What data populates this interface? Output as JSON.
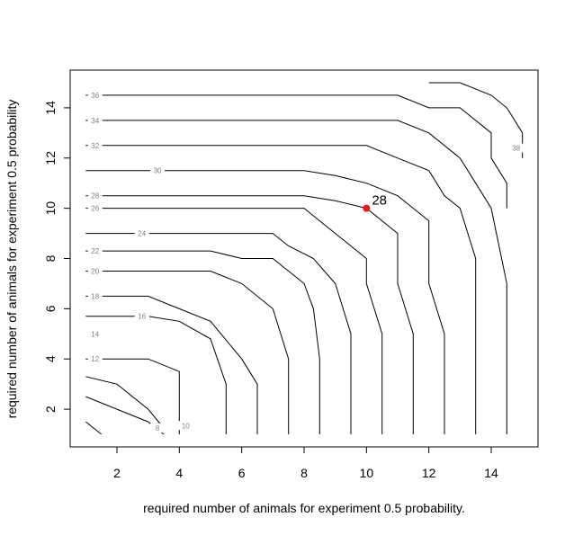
{
  "chart_data": {
    "type": "contour",
    "title": "",
    "xlabel": "required number of animals for experiment 0.5 probability.",
    "ylabel": "required number of animals for experiment 0.5 probability",
    "xlim": [
      0.5,
      15.5
    ],
    "ylim": [
      0.5,
      15.5
    ],
    "x_ticks": [
      2,
      4,
      6,
      8,
      10,
      12,
      14
    ],
    "y_ticks": [
      2,
      4,
      6,
      8,
      10,
      12,
      14
    ],
    "grid": false,
    "legend": "none",
    "contours": [
      {
        "level": 8,
        "label": "8",
        "label_at": [
          3.3,
          1.25
        ],
        "points": [
          [
            1,
            1.5
          ],
          [
            1.5,
            1
          ]
        ]
      },
      {
        "level": 10,
        "label": "10",
        "label_at": [
          4.2,
          1.35
        ],
        "points": [
          [
            1,
            2.5
          ],
          [
            2,
            2
          ],
          [
            3,
            1.5
          ],
          [
            3.5,
            1
          ]
        ]
      },
      {
        "level": 12,
        "label": "12",
        "label_at": [
          1.3,
          4
        ],
        "points": [
          [
            1,
            3.3
          ],
          [
            2,
            3
          ],
          [
            3,
            2
          ],
          [
            3.2,
            1.7
          ],
          [
            3.5,
            1.25
          ]
        ]
      },
      {
        "level": 14,
        "label": "14",
        "label_at": [
          1.3,
          5
        ],
        "points": [
          [
            1,
            4
          ],
          [
            2,
            4
          ],
          [
            3,
            4
          ],
          [
            4,
            3.5
          ],
          [
            4,
            1
          ]
        ]
      },
      {
        "level": 16,
        "label": "16",
        "label_at": [
          2.8,
          5.7
        ],
        "points": [
          [
            1,
            5.7
          ],
          [
            2,
            5.7
          ],
          [
            3,
            5.7
          ],
          [
            4,
            5.5
          ],
          [
            5,
            4.8
          ],
          [
            5.5,
            3
          ],
          [
            5.5,
            1
          ]
        ]
      },
      {
        "level": 18,
        "label": "18",
        "label_at": [
          1.3,
          6.5
        ],
        "points": [
          [
            1,
            6.5
          ],
          [
            2,
            6.5
          ],
          [
            3,
            6.5
          ],
          [
            4,
            6
          ],
          [
            5,
            5.5
          ],
          [
            6,
            4
          ],
          [
            6.5,
            3
          ],
          [
            6.5,
            1
          ]
        ]
      },
      {
        "level": 20,
        "label": "20",
        "label_at": [
          1.3,
          7.5
        ],
        "points": [
          [
            1,
            7.5
          ],
          [
            2,
            7.5
          ],
          [
            3,
            7.5
          ],
          [
            5,
            7.5
          ],
          [
            6,
            7
          ],
          [
            7,
            6
          ],
          [
            7.5,
            4
          ],
          [
            7.5,
            1
          ]
        ]
      },
      {
        "level": 22,
        "label": "22",
        "label_at": [
          1.3,
          8.3
        ],
        "points": [
          [
            1,
            8.3
          ],
          [
            2,
            8.3
          ],
          [
            3,
            8.3
          ],
          [
            5,
            8.3
          ],
          [
            6,
            8
          ],
          [
            7,
            8
          ],
          [
            8,
            7
          ],
          [
            8.3,
            6
          ],
          [
            8.5,
            4
          ],
          [
            8.5,
            1
          ]
        ]
      },
      {
        "level": 24,
        "label": "24",
        "label_at": [
          2.8,
          9
        ],
        "points": [
          [
            1,
            9
          ],
          [
            2,
            9
          ],
          [
            3,
            9
          ],
          [
            5,
            9
          ],
          [
            6,
            9
          ],
          [
            7,
            9
          ],
          [
            7.5,
            8.5
          ],
          [
            8.3,
            8
          ],
          [
            9,
            7
          ],
          [
            9.5,
            5
          ],
          [
            9.5,
            1
          ]
        ]
      },
      {
        "level": 26,
        "label": "26",
        "label_at": [
          1.3,
          10
        ],
        "points": [
          [
            1,
            10
          ],
          [
            2,
            10
          ],
          [
            3,
            10
          ],
          [
            5,
            10
          ],
          [
            7,
            10
          ],
          [
            8,
            10
          ],
          [
            8.5,
            9.5
          ],
          [
            9,
            9
          ],
          [
            10,
            8
          ],
          [
            10,
            7
          ],
          [
            10.5,
            5
          ],
          [
            10.5,
            1
          ]
        ]
      },
      {
        "level": 28,
        "label": "28",
        "label_at": [
          1.3,
          10.5
        ],
        "points": [
          [
            1,
            10.5
          ],
          [
            2,
            10.5
          ],
          [
            3,
            10.5
          ],
          [
            5,
            10.5
          ],
          [
            7,
            10.5
          ],
          [
            8,
            10.5
          ],
          [
            9,
            10.3
          ],
          [
            10,
            10
          ],
          [
            11,
            9
          ],
          [
            11,
            7
          ],
          [
            11.5,
            5
          ],
          [
            11.5,
            1
          ]
        ]
      },
      {
        "level": 30,
        "label": "30",
        "label_at": [
          3.3,
          11.5
        ],
        "points": [
          [
            1,
            11.5
          ],
          [
            2,
            11.5
          ],
          [
            3,
            11.5
          ],
          [
            5,
            11.5
          ],
          [
            7,
            11.5
          ],
          [
            8,
            11.5
          ],
          [
            9,
            11.3
          ],
          [
            10,
            11
          ],
          [
            11,
            10.5
          ],
          [
            11.5,
            10
          ],
          [
            12,
            9.5
          ],
          [
            12,
            7
          ],
          [
            12.5,
            5
          ],
          [
            12.5,
            1
          ]
        ]
      },
      {
        "level": 32,
        "label": "32",
        "label_at": [
          1.3,
          12.5
        ],
        "points": [
          [
            1,
            12.5
          ],
          [
            2,
            12.5
          ],
          [
            3,
            12.5
          ],
          [
            5,
            12.5
          ],
          [
            7,
            12.5
          ],
          [
            9,
            12.5
          ],
          [
            10,
            12.5
          ],
          [
            11,
            12
          ],
          [
            12,
            11.5
          ],
          [
            12.5,
            10.5
          ],
          [
            13,
            10
          ],
          [
            13.5,
            8
          ],
          [
            13.5,
            1
          ]
        ]
      },
      {
        "level": 34,
        "label": "34",
        "label_at": [
          1.3,
          13.5
        ],
        "points": [
          [
            1,
            13.5
          ],
          [
            2,
            13.5
          ],
          [
            3,
            13.5
          ],
          [
            5,
            13.5
          ],
          [
            7,
            13.5
          ],
          [
            9,
            13.5
          ],
          [
            11,
            13.5
          ],
          [
            12,
            13
          ],
          [
            13,
            12
          ],
          [
            13.5,
            11
          ],
          [
            14,
            10
          ],
          [
            14.5,
            7
          ],
          [
            14.5,
            1
          ]
        ]
      },
      {
        "level": 36,
        "label": "36",
        "label_at": [
          1.3,
          14.5
        ],
        "points": [
          [
            1,
            14.5
          ],
          [
            2,
            14.5
          ],
          [
            3,
            14.5
          ],
          [
            5,
            14.5
          ],
          [
            7,
            14.5
          ],
          [
            9,
            14.5
          ],
          [
            11,
            14.5
          ],
          [
            12,
            14
          ],
          [
            13,
            14
          ],
          [
            14,
            13
          ],
          [
            14,
            12
          ],
          [
            14.5,
            11
          ],
          [
            14.5,
            10
          ]
        ]
      },
      {
        "level": 38,
        "label": "38",
        "label_at": [
          14.8,
          12.4
        ],
        "points": [
          [
            12,
            15
          ],
          [
            13,
            15
          ],
          [
            14,
            14.5
          ],
          [
            14.5,
            14
          ],
          [
            15,
            13
          ],
          [
            15,
            12
          ]
        ]
      }
    ],
    "highlight_point": {
      "x": 10,
      "y": 10,
      "label": "28",
      "color": "#e41a1c"
    }
  },
  "colors": {
    "contour_line": "#000000",
    "contour_label": "#7f7f7f",
    "frame": "#000000",
    "highlight": "#e41a1c"
  }
}
